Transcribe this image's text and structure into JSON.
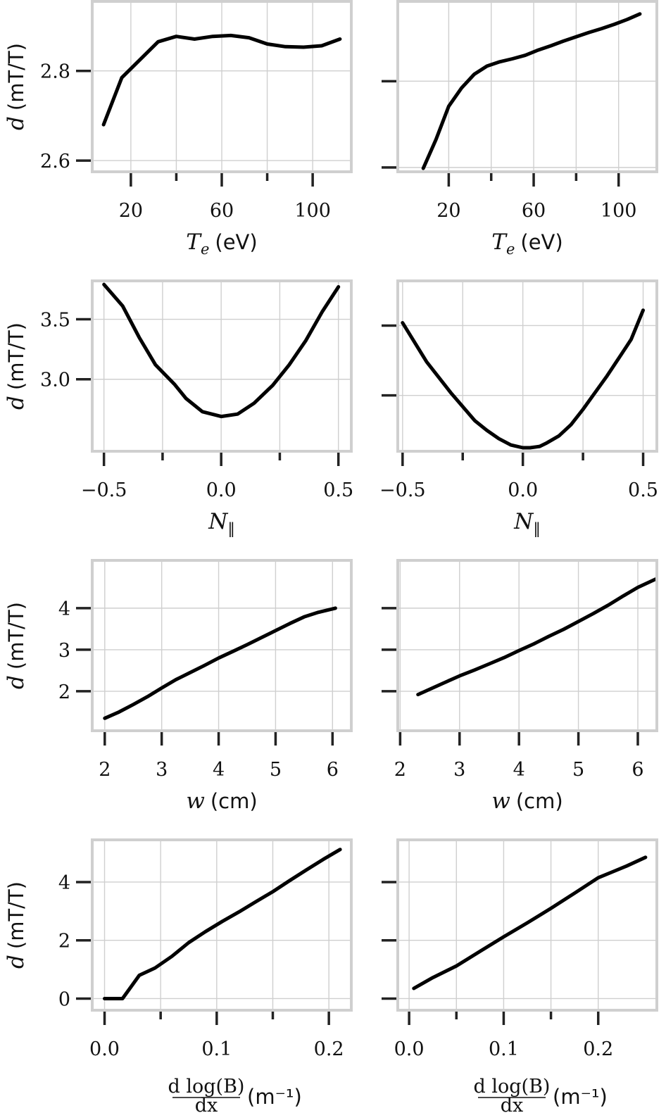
{
  "chart_data": [
    {
      "type": "line",
      "panel": "row1-left",
      "x": [
        8,
        16,
        24,
        32,
        40,
        48,
        56,
        64,
        72,
        80,
        88,
        96,
        104,
        112
      ],
      "y": [
        2.68,
        2.785,
        2.825,
        2.865,
        2.877,
        2.871,
        2.877,
        2.879,
        2.874,
        2.86,
        2.854,
        2.853,
        2.856,
        2.871
      ],
      "xlim": [
        3,
        117
      ],
      "ylim": [
        2.575,
        2.955
      ],
      "xticks": [
        20,
        60,
        100
      ],
      "xminor": [
        40,
        80
      ],
      "yticks": [
        2.6,
        2.8
      ],
      "xtick_labels": [
        "20",
        "60",
        "100"
      ],
      "ytick_labels": [
        "2.6",
        "2.8"
      ],
      "xlabel": {
        "var": "T",
        "sub": "e",
        "unit": "(eV)"
      },
      "ylabel": {
        "var": "d",
        "unit": "(mT/T)"
      },
      "grid": true
    },
    {
      "type": "line",
      "panel": "row1-right",
      "x": [
        8,
        14,
        20,
        26,
        32,
        38,
        44,
        50,
        56,
        62,
        68,
        74,
        80,
        86,
        92,
        98,
        104,
        110
      ],
      "y": [
        2.598,
        2.665,
        2.742,
        2.784,
        2.816,
        2.835,
        2.845,
        2.852,
        2.86,
        2.872,
        2.882,
        2.893,
        2.903,
        2.913,
        2.922,
        2.932,
        2.943,
        2.956
      ],
      "xlim": [
        -4,
        118
      ],
      "ylim": [
        2.59,
        2.985
      ],
      "xticks": [
        20,
        60,
        100
      ],
      "xminor": [
        40,
        80
      ],
      "yticks": [
        2.6,
        2.8
      ],
      "xtick_labels": [
        "20",
        "60",
        "100"
      ],
      "ytick_labels": [],
      "xlabel": {
        "var": "T",
        "sub": "e",
        "unit": "(eV)"
      },
      "grid": true
    },
    {
      "type": "line",
      "panel": "row2-left",
      "x": [
        -0.5,
        -0.42,
        -0.35,
        -0.28,
        -0.2,
        -0.15,
        -0.08,
        0,
        0.07,
        0.14,
        0.22,
        0.29,
        0.36,
        0.43,
        0.5
      ],
      "y": [
        3.79,
        3.61,
        3.35,
        3.12,
        2.96,
        2.84,
        2.73,
        2.69,
        2.71,
        2.8,
        2.95,
        3.12,
        3.32,
        3.56,
        3.77
      ],
      "xlim": [
        -0.55,
        0.555
      ],
      "ylim": [
        2.4,
        3.82
      ],
      "xticks": [
        -0.5,
        0,
        0.5
      ],
      "xminor": [
        -0.25,
        0.25
      ],
      "yticks": [
        3.0,
        3.5
      ],
      "xtick_labels": [
        "−0.5",
        "0.0",
        "0.5"
      ],
      "ytick_labels": [
        "3.0",
        "3.5"
      ],
      "xlabel": {
        "var": "N",
        "sub": "‖",
        "unit": ""
      },
      "ylabel": {
        "var": "d",
        "unit": "(mT/T)"
      },
      "grid": true
    },
    {
      "type": "line",
      "panel": "row2-right",
      "x": [
        -0.5,
        -0.4,
        -0.3,
        -0.2,
        -0.15,
        -0.1,
        -0.05,
        0,
        0.03,
        0.07,
        0.1,
        0.15,
        0.2,
        0.25,
        0.3,
        0.35,
        0.4,
        0.45,
        0.5
      ],
      "y": [
        3.52,
        3.24,
        3.02,
        2.82,
        2.75,
        2.69,
        2.645,
        2.625,
        2.625,
        2.635,
        2.66,
        2.71,
        2.79,
        2.9,
        3.02,
        3.14,
        3.27,
        3.4,
        3.61
      ],
      "xlim": [
        -0.52,
        0.557
      ],
      "ylim": [
        2.6,
        3.82
      ],
      "xticks": [
        -0.5,
        0,
        0.5
      ],
      "xminor": [
        -0.25,
        0.25
      ],
      "yticks": [
        3.0,
        3.5
      ],
      "xtick_labels": [
        "−0.5",
        "0.0",
        "0.5"
      ],
      "ytick_labels": [],
      "xlabel": {
        "var": "N",
        "sub": "‖",
        "unit": ""
      },
      "grid": true
    },
    {
      "type": "line",
      "panel": "row3-left",
      "x": [
        2,
        2.25,
        2.5,
        2.75,
        3,
        3.25,
        3.5,
        3.75,
        4,
        4.25,
        4.5,
        4.75,
        5,
        5.25,
        5.5,
        5.75,
        6.05
      ],
      "y": [
        1.35,
        1.5,
        1.68,
        1.87,
        2.08,
        2.28,
        2.45,
        2.62,
        2.8,
        2.96,
        3.12,
        3.29,
        3.46,
        3.63,
        3.79,
        3.9,
        4.0
      ],
      "xlim": [
        1.78,
        6.33
      ],
      "ylim": [
        1.05,
        5.15
      ],
      "xticks": [
        2,
        3,
        4,
        5,
        6
      ],
      "xminor": [],
      "yticks": [
        2,
        3,
        4
      ],
      "xtick_labels": [
        "2",
        "3",
        "4",
        "5",
        "6"
      ],
      "ytick_labels": [
        "2",
        "3",
        "4"
      ],
      "xlabel": {
        "var": "w",
        "sub": "",
        "unit": "(cm)"
      },
      "ylabel": {
        "var": "d",
        "unit": "(mT/T)"
      },
      "grid": true
    },
    {
      "type": "line",
      "panel": "row3-right",
      "x": [
        2.3,
        2.5,
        2.75,
        3,
        3.25,
        3.5,
        3.75,
        4,
        4.25,
        4.5,
        4.75,
        5,
        5.25,
        5.5,
        5.75,
        6,
        6.3
      ],
      "y": [
        1.92,
        2.05,
        2.21,
        2.37,
        2.51,
        2.66,
        2.81,
        2.98,
        3.14,
        3.32,
        3.49,
        3.68,
        3.87,
        4.07,
        4.29,
        4.5,
        4.7
      ],
      "xlim": [
        1.96,
        6.32
      ],
      "ylim": [
        1.05,
        5.15
      ],
      "xticks": [
        2,
        3,
        4,
        5,
        6
      ],
      "xminor": [],
      "yticks": [
        2,
        3,
        4
      ],
      "xtick_labels": [
        "2",
        "3",
        "4",
        "5",
        "6"
      ],
      "ytick_labels": [],
      "xlabel": {
        "var": "w",
        "sub": "",
        "unit": "(cm)"
      },
      "grid": true
    },
    {
      "type": "line",
      "panel": "row4-left",
      "x": [
        0.0,
        0.016,
        0.031,
        0.045,
        0.06,
        0.075,
        0.09,
        0.105,
        0.12,
        0.135,
        0.15,
        0.165,
        0.18,
        0.195,
        0.21
      ],
      "y": [
        0.0,
        0.0,
        0.8,
        1.05,
        1.45,
        1.92,
        2.3,
        2.65,
        2.98,
        3.33,
        3.67,
        4.05,
        4.42,
        4.78,
        5.12
      ],
      "xlim": [
        -0.011,
        0.22
      ],
      "ylim": [
        -0.4,
        5.45
      ],
      "xticks": [
        0.0,
        0.1,
        0.2
      ],
      "xminor": [
        0.05,
        0.15
      ],
      "yticks": [
        0,
        2,
        4
      ],
      "xtick_labels": [
        "0.0",
        "0.1",
        "0.2"
      ],
      "ytick_labels": [
        "0",
        "2",
        "4"
      ],
      "xlabel": {
        "frac_num": "d log(B)",
        "frac_den": "dx",
        "unit": "(m⁻¹)"
      },
      "ylabel": {
        "var": "d",
        "unit": "(mT/T)"
      },
      "grid": true
    },
    {
      "type": "line",
      "panel": "row4-right",
      "x": [
        0.005,
        0.025,
        0.05,
        0.075,
        0.1,
        0.125,
        0.15,
        0.175,
        0.2,
        0.215,
        0.23,
        0.25
      ],
      "y": [
        0.35,
        0.72,
        1.12,
        1.62,
        2.12,
        2.6,
        3.1,
        3.62,
        4.15,
        4.35,
        4.55,
        4.85
      ],
      "xlim": [
        -0.012,
        0.262
      ],
      "ylim": [
        -0.4,
        5.45
      ],
      "xticks": [
        0.0,
        0.1,
        0.2
      ],
      "xminor": [
        0.05,
        0.15
      ],
      "yticks": [
        0,
        2,
        4
      ],
      "xtick_labels": [
        "0.0",
        "0.1",
        "0.2"
      ],
      "ytick_labels": [],
      "xlabel": {
        "frac_num": "d log(B)",
        "frac_den": "dx",
        "unit": "(m⁻¹)"
      },
      "grid": true
    }
  ]
}
